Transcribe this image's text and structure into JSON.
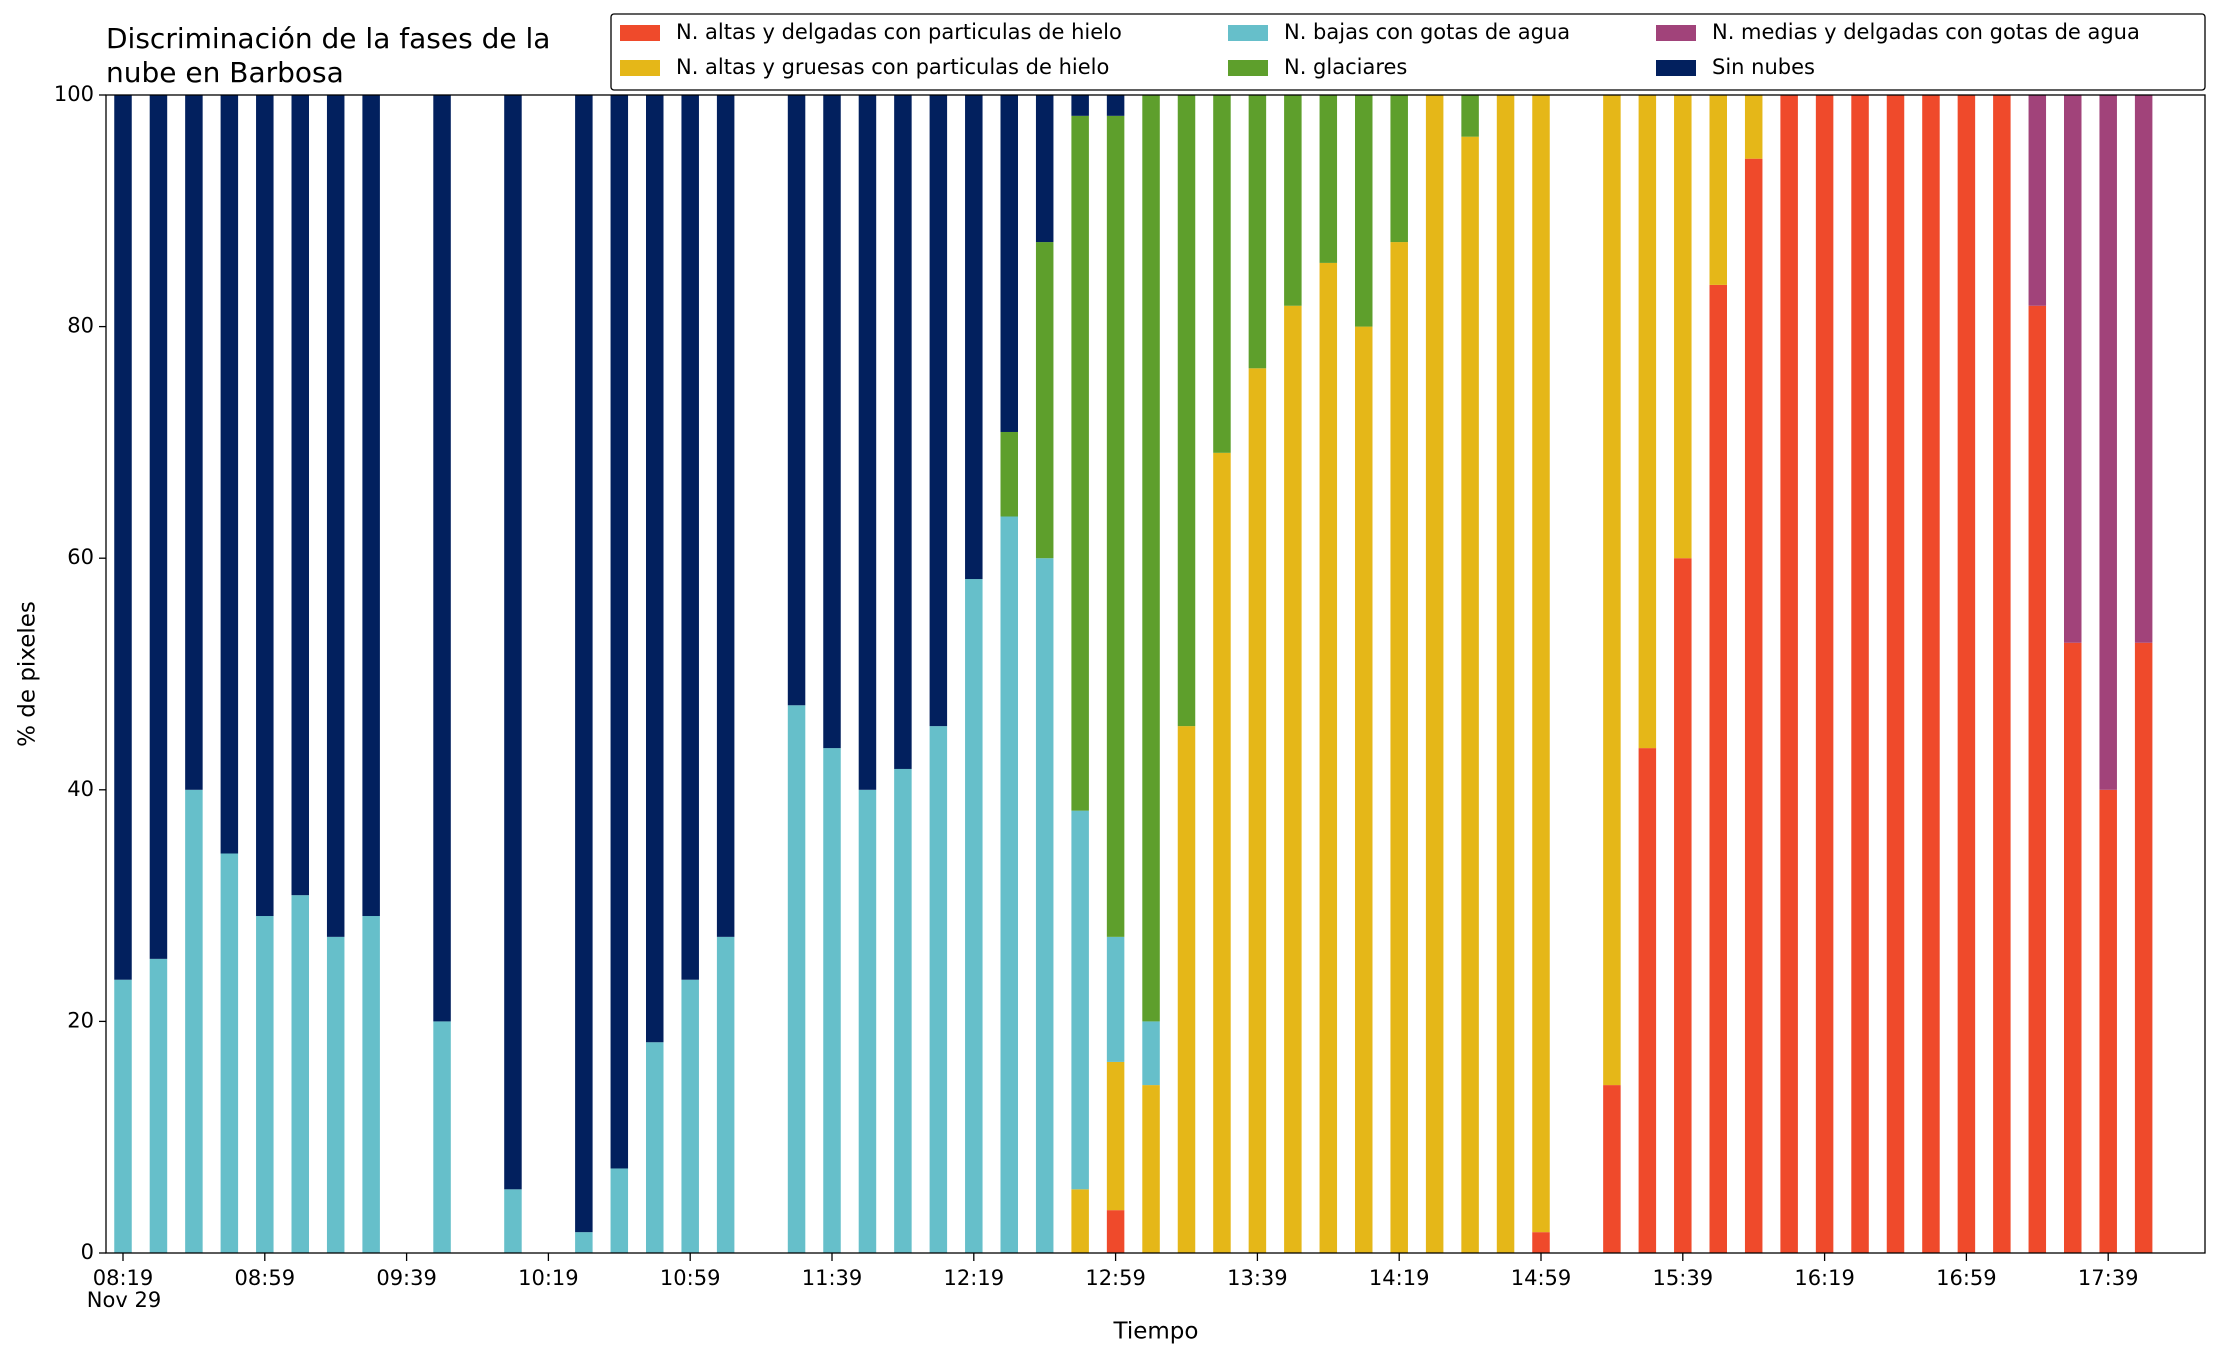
{
  "chart_data": {
    "type": "stacked_bar",
    "title_lines": [
      "Discriminación de la fases de la",
      "nube en Barbosa"
    ],
    "x_label": "Tiempo",
    "y_label": "% de pixeles",
    "date_label": "Nov 29",
    "categories": [
      "08:19",
      null,
      null,
      null,
      "08:59",
      null,
      null,
      null,
      "09:39",
      null,
      null,
      null,
      "10:19",
      null,
      null,
      null,
      "10:59",
      null,
      null,
      null,
      "11:39",
      null,
      null,
      null,
      "12:19",
      null,
      null,
      null,
      "12:59",
      null,
      null,
      null,
      "13:39",
      null,
      null,
      null,
      "14:19",
      null,
      null,
      null,
      "14:59",
      null,
      null,
      null,
      "15:39",
      null,
      null,
      null,
      "16:19",
      null,
      null,
      null,
      "16:59",
      null,
      null,
      null,
      "17:39",
      null
    ],
    "ylim": [
      0,
      100
    ],
    "yticks": [
      0,
      20,
      40,
      60,
      80,
      100
    ],
    "legend": "top-right",
    "series": [
      {
        "name": "N. altas y delgadas con particulas de hielo",
        "color": "#ef4a2b",
        "values": [
          0,
          0,
          0,
          0,
          0,
          0,
          0,
          0,
          null,
          0,
          null,
          0,
          null,
          0,
          0,
          0,
          0,
          0,
          null,
          0,
          0,
          0,
          0,
          0,
          0,
          0,
          0,
          0,
          3.7,
          0,
          0,
          0,
          0,
          0,
          0,
          0,
          0,
          0,
          0,
          0,
          1.8,
          null,
          14.5,
          43.6,
          60,
          83.6,
          94.5,
          100,
          100,
          100,
          100,
          100,
          100,
          100,
          81.8,
          52.7,
          40,
          52.7
        ]
      },
      {
        "name": "N. altas y gruesas con particulas de hielo",
        "color": "#e5b718",
        "values": [
          0,
          0,
          0,
          0,
          0,
          0,
          0,
          0,
          null,
          0,
          null,
          0,
          null,
          0,
          0,
          0,
          0,
          0,
          null,
          0,
          0,
          0,
          0,
          0,
          0,
          0,
          0,
          5.5,
          12.8,
          14.5,
          45.5,
          69.1,
          76.4,
          81.8,
          85.5,
          80,
          87.3,
          100,
          96.4,
          100,
          98.2,
          null,
          85.5,
          56.4,
          40,
          16.4,
          5.5,
          0,
          0,
          0,
          0,
          0,
          0,
          0,
          0,
          0,
          0,
          0
        ]
      },
      {
        "name": "N. bajas con gotas de agua",
        "color": "#66bfca",
        "values": [
          23.6,
          25.4,
          40,
          34.5,
          29.1,
          30.9,
          27.3,
          29.1,
          null,
          20,
          null,
          5.5,
          null,
          1.8,
          7.3,
          18.2,
          23.6,
          27.3,
          null,
          47.3,
          43.6,
          40,
          41.8,
          45.5,
          58.2,
          63.6,
          60,
          32.7,
          10.8,
          5.5,
          0,
          0,
          0,
          0,
          0,
          0,
          0,
          0,
          0,
          0,
          0,
          null,
          0,
          0,
          0,
          0,
          0,
          0,
          0,
          0,
          0,
          0,
          0,
          0,
          0,
          0,
          0,
          0
        ]
      },
      {
        "name": "N. glaciares",
        "color": "#5e9f2c",
        "values": [
          0,
          0,
          0,
          0,
          0,
          0,
          0,
          0,
          null,
          0,
          null,
          0,
          null,
          0,
          0,
          0,
          0,
          0,
          null,
          0,
          0,
          0,
          0,
          0,
          0,
          7.3,
          27.3,
          60,
          70.9,
          80,
          54.5,
          30.9,
          23.6,
          18.2,
          14.5,
          20,
          12.7,
          0,
          3.6,
          0,
          0,
          null,
          0,
          0,
          0,
          0,
          0,
          0,
          0,
          0,
          0,
          0,
          0,
          0,
          0,
          0,
          0,
          0
        ]
      },
      {
        "name": "N. medias y delgadas con gotas de agua",
        "color": "#a1437a",
        "values": [
          0,
          0,
          0,
          0,
          0,
          0,
          0,
          0,
          null,
          0,
          null,
          0,
          null,
          0,
          0,
          0,
          0,
          0,
          null,
          0,
          0,
          0,
          0,
          0,
          0,
          0,
          0,
          0,
          0,
          0,
          0,
          0,
          0,
          0,
          0,
          0,
          0,
          0,
          0,
          0,
          0,
          null,
          0,
          0,
          0,
          0,
          0,
          0,
          0,
          0,
          0,
          0,
          0,
          0,
          18.2,
          47.3,
          60,
          47.3
        ]
      },
      {
        "name": "Sin nubes",
        "color": "#02205e",
        "values": [
          76.4,
          74.6,
          60,
          65.5,
          70.9,
          69.1,
          72.7,
          70.9,
          null,
          80,
          null,
          94.5,
          null,
          98.2,
          92.7,
          81.8,
          76.4,
          72.7,
          null,
          52.7,
          56.4,
          60,
          58.2,
          54.5,
          41.8,
          29.1,
          12.7,
          1.8,
          1.8,
          0,
          0,
          0,
          0,
          0,
          0,
          0,
          0,
          0,
          0,
          0,
          0,
          null,
          0,
          0,
          0,
          0,
          0,
          0,
          0,
          0,
          0,
          0,
          0,
          0,
          0,
          0,
          0,
          0
        ]
      }
    ]
  }
}
